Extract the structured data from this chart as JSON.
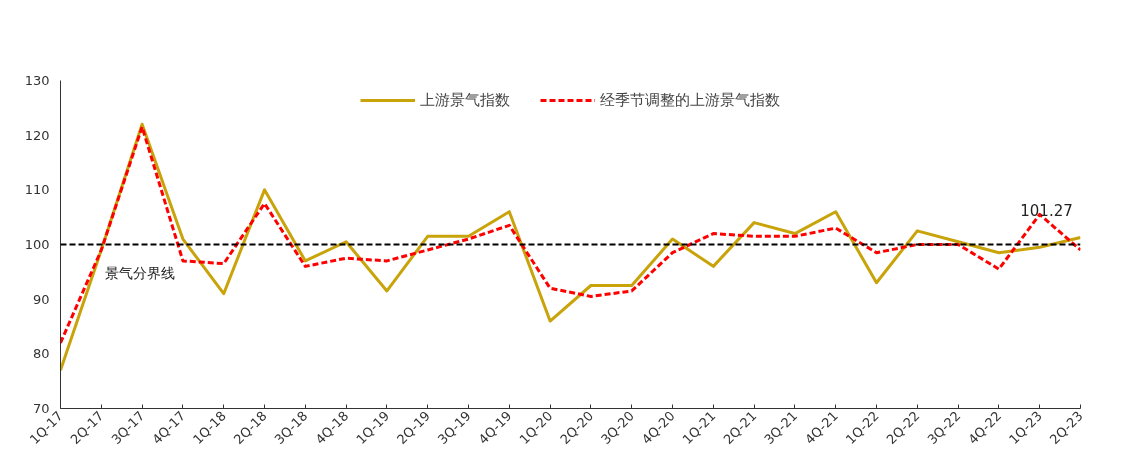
{
  "chart_data": {
    "type": "line",
    "categories": [
      "1Q-17",
      "2Q-17",
      "3Q-17",
      "4Q-17",
      "1Q-18",
      "2Q-18",
      "3Q-18",
      "4Q-18",
      "1Q-19",
      "2Q-19",
      "3Q-19",
      "4Q-19",
      "1Q-20",
      "2Q-20",
      "3Q-20",
      "4Q-20",
      "1Q-21",
      "2Q-21",
      "3Q-21",
      "4Q-21",
      "1Q-22",
      "2Q-22",
      "3Q-22",
      "4Q-22",
      "1Q-23",
      "2Q-23"
    ],
    "series": [
      {
        "name": "上游景气指数",
        "color": "#c9a30a",
        "line_style": "solid",
        "values": [
          77,
          99,
          122,
          101,
          91,
          110,
          97,
          100.5,
          91.5,
          101.5,
          101.5,
          106,
          86,
          92.5,
          92.5,
          101,
          96,
          104,
          102,
          106,
          93,
          102.5,
          100.5,
          98.5,
          99.5,
          101.27
        ]
      },
      {
        "name": "经季节调整的上游景气指数",
        "color": "#ff0000",
        "line_style": "dashed",
        "values": [
          82,
          99,
          121.5,
          97,
          96.5,
          107.5,
          96,
          97.5,
          97,
          99,
          101,
          103.5,
          92,
          90.5,
          91.5,
          98.5,
          102,
          101.5,
          101.5,
          103,
          98.5,
          100,
          100,
          95.5,
          105.5,
          99
        ]
      }
    ],
    "ylim": [
      70,
      130
    ],
    "yticks": [
      70,
      80,
      90,
      100,
      110,
      120,
      130
    ],
    "ref_lines": [
      {
        "axis": "y",
        "value": 100,
        "label": "景气分界线",
        "color": "#000000",
        "line_style": "dashed"
      }
    ],
    "annotations": [
      {
        "text": "101.27",
        "x": "2Q-23",
        "y": 101.27
      }
    ],
    "grid": false,
    "legend": "top",
    "marker": "none"
  }
}
